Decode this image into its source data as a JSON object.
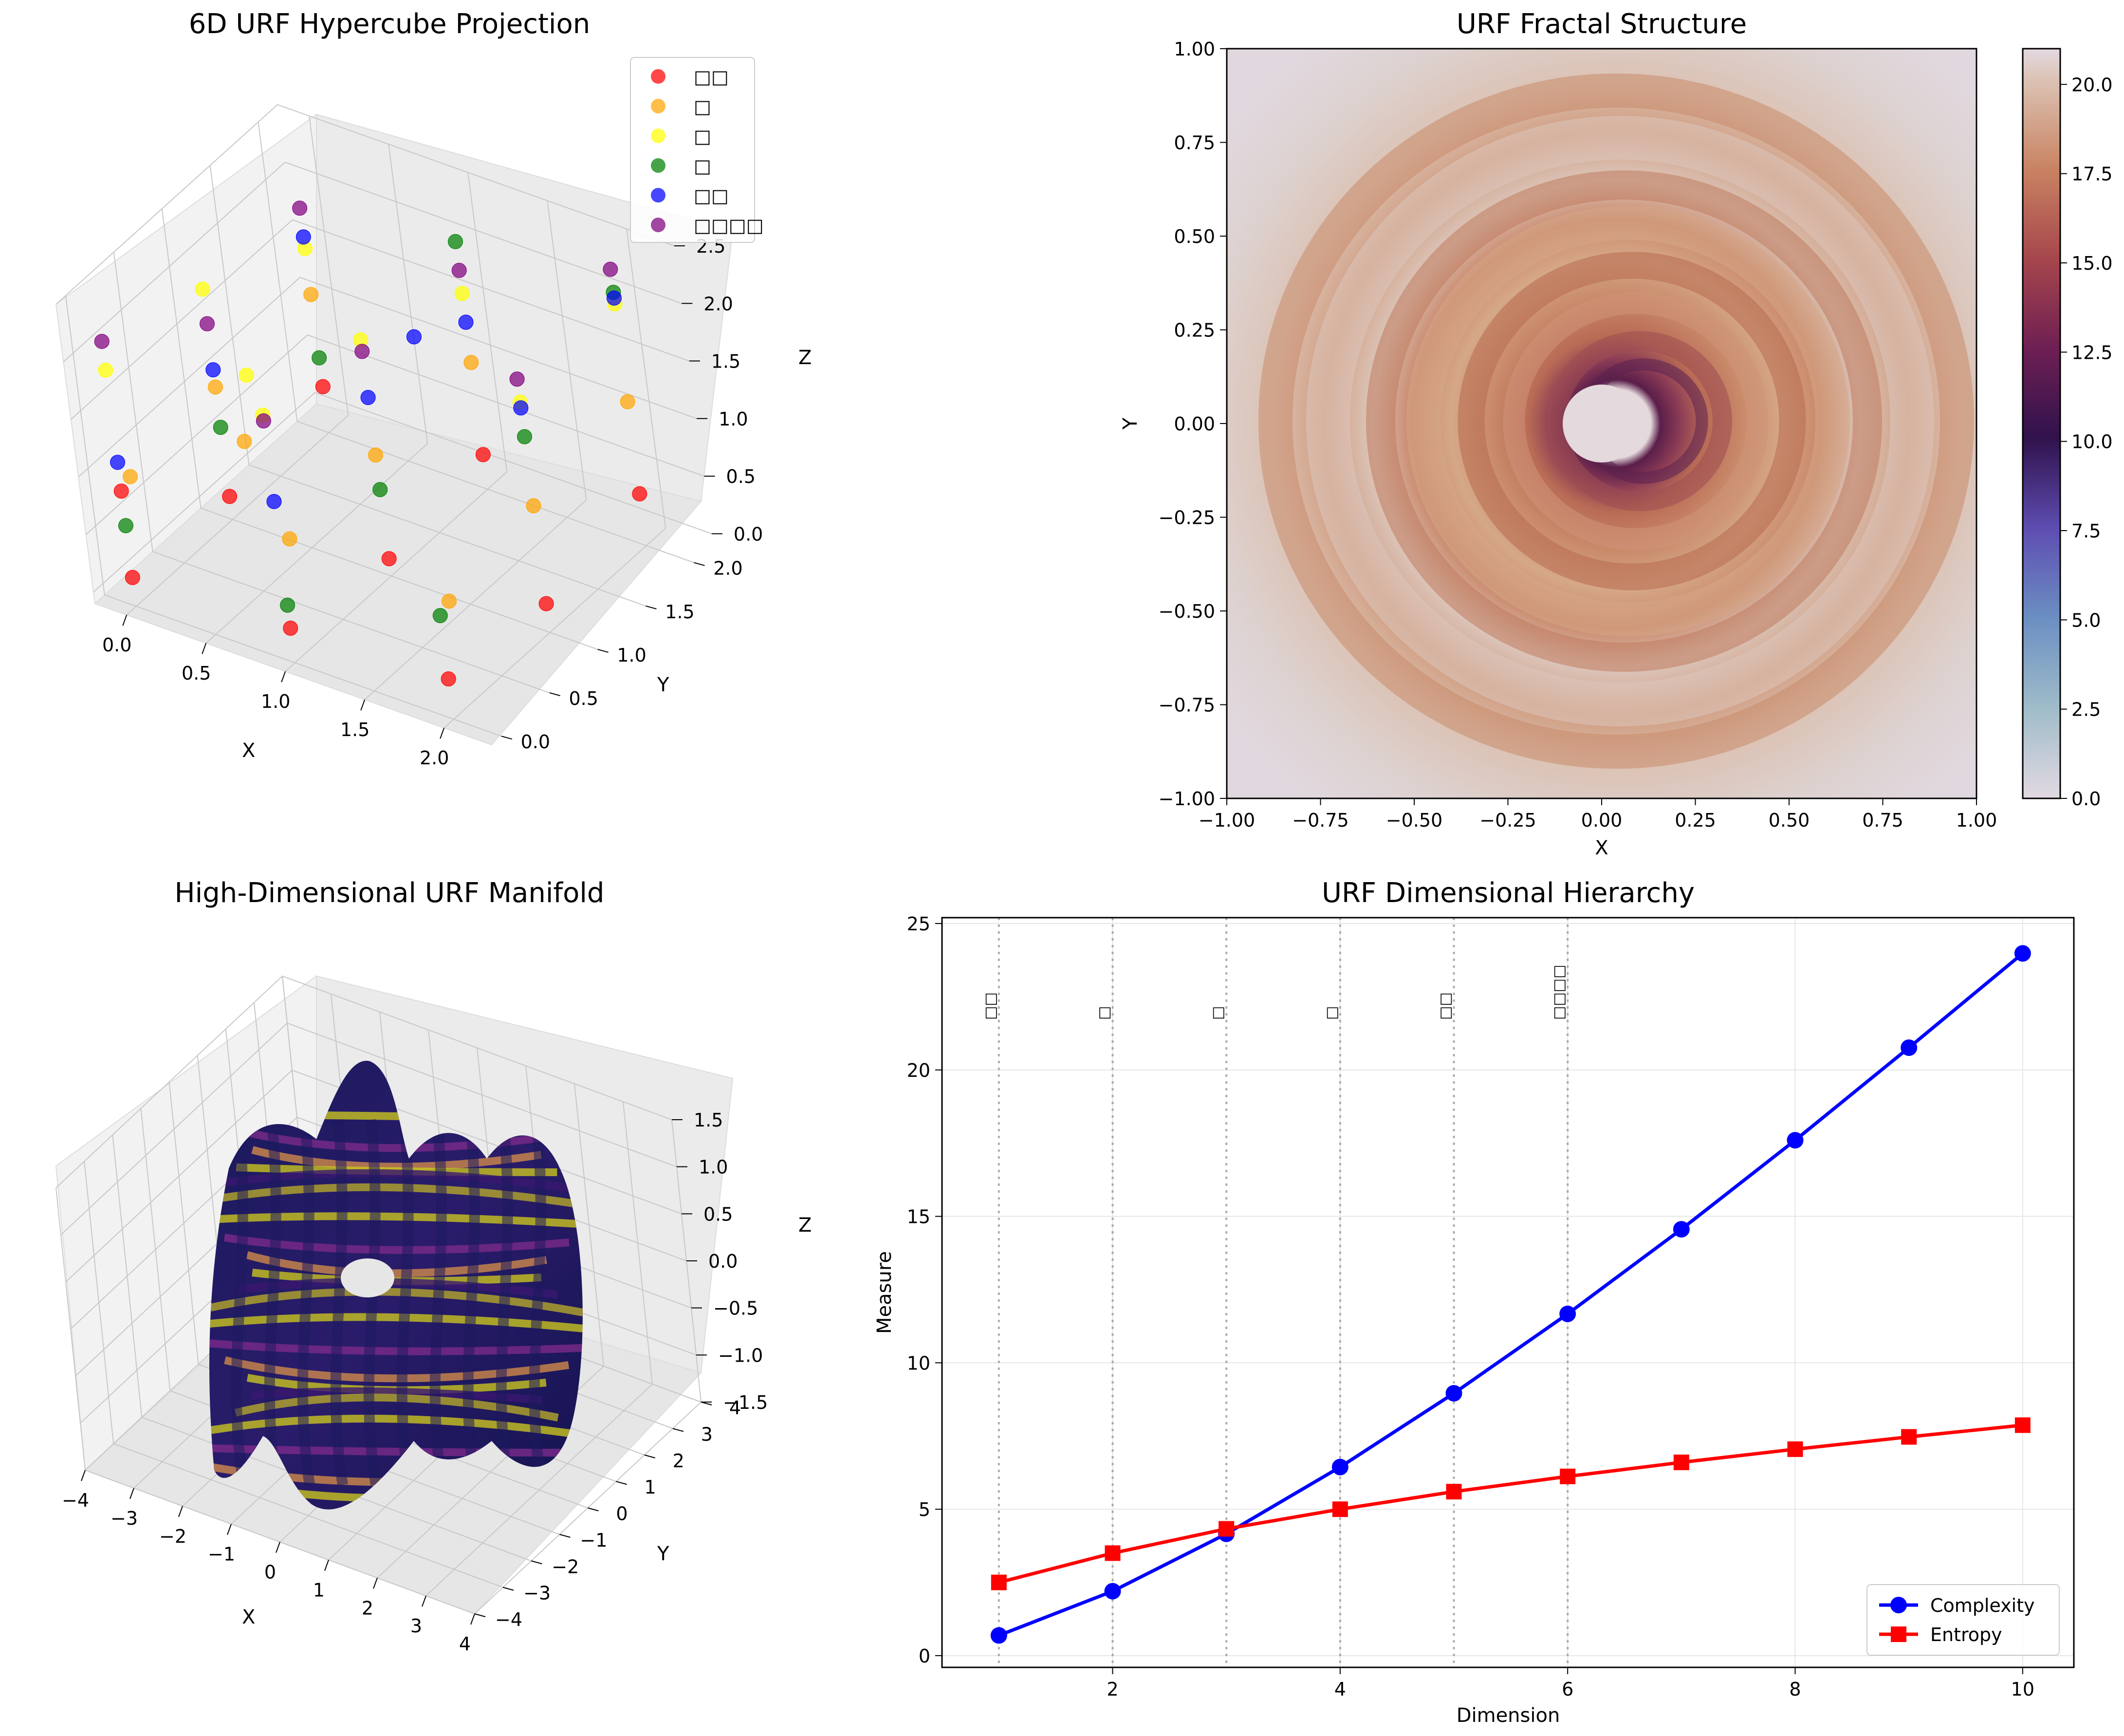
{
  "figure": {
    "panels": [
      {
        "title": "6D URF Hypercube Projection"
      },
      {
        "title": "URF Fractal Structure"
      },
      {
        "title": "High-Dimensional URF Manifold"
      },
      {
        "title": "URF Dimensional Hierarchy"
      }
    ]
  },
  "chart_data": [
    {
      "type": "scatter",
      "projection": "3d",
      "title": "6D URF Hypercube Projection",
      "xlabel": "X",
      "ylabel": "Y",
      "zlabel": "Z",
      "xticks": [
        "0.0",
        "0.5",
        "1.0",
        "1.5",
        "2.0"
      ],
      "yticks": [
        "0.0",
        "0.5",
        "1.0",
        "1.5",
        "2.0"
      ],
      "zticks": [
        "0.0",
        "0.5",
        "1.0",
        "1.5",
        "2.0",
        "2.5"
      ],
      "xlim": [
        -0.2,
        2.3
      ],
      "ylim": [
        -0.1,
        2.2
      ],
      "zlim": [
        -0.1,
        2.5
      ],
      "legend": {
        "placement": "upper-right"
      },
      "series": [
        {
          "name": "□□",
          "color": "#ff0000",
          "points": [
            [
              0,
              0,
              0.15
            ],
            [
              0,
              1,
              0.1
            ],
            [
              1,
              0,
              0.2
            ],
            [
              1,
              1,
              0.05
            ],
            [
              2,
              0,
              0.25
            ],
            [
              2,
              1,
              0.15
            ],
            [
              0,
              2,
              0.3
            ],
            [
              1,
              2,
              0.2
            ],
            [
              2,
              2,
              0.35
            ],
            [
              0,
              0,
              0.9
            ]
          ]
        },
        {
          "name": "□",
          "color": "#ffa500",
          "points": [
            [
              0,
              0.1,
              0.95
            ],
            [
              1,
              0.1,
              0.9
            ],
            [
              2,
              0.1,
              0.85
            ],
            [
              0,
              1,
              1.05
            ],
            [
              1,
              1,
              0.95
            ],
            [
              2,
              1,
              1.0
            ],
            [
              0,
              2,
              1.1
            ],
            [
              1,
              2,
              1.0
            ],
            [
              2,
              2,
              1.15
            ],
            [
              0.5,
              0.5,
              1.2
            ]
          ]
        },
        {
          "name": "□",
          "color": "#ffff00",
          "points": [
            [
              0,
              0,
              1.95
            ],
            [
              0,
              1,
              1.9
            ],
            [
              1,
              0,
              2.05
            ],
            [
              1,
              1,
              1.95
            ],
            [
              2,
              1,
              1.9
            ],
            [
              0,
              2,
              1.5
            ],
            [
              1,
              2,
              1.6
            ],
            [
              2,
              2,
              2.0
            ],
            [
              0.5,
              0.6,
              1.7
            ]
          ]
        },
        {
          "name": "□",
          "color": "#008000",
          "points": [
            [
              0,
              0,
              0.6
            ],
            [
              1,
              0,
              0.4
            ],
            [
              2,
              0,
              0.8
            ],
            [
              0,
              1,
              0.7
            ],
            [
              1,
              1,
              0.65
            ],
            [
              2,
              1,
              1.6
            ],
            [
              1,
              2,
              2.05
            ],
            [
              2,
              2,
              2.1
            ],
            [
              0,
              2,
              0.55
            ]
          ]
        },
        {
          "name": "□□",
          "color": "#0000ff",
          "points": [
            [
              0,
              0,
              1.15
            ],
            [
              0,
              1,
              1.2
            ],
            [
              1,
              0,
              1.3
            ],
            [
              1,
              1,
              1.45
            ],
            [
              1,
              2,
              1.35
            ],
            [
              2,
              1,
              1.85
            ],
            [
              2,
              2,
              2.05
            ],
            [
              0,
              2,
              1.6
            ],
            [
              1,
              1.5,
              1.6
            ]
          ]
        },
        {
          "name": "□□□□",
          "color": "#800080",
          "points": [
            [
              0,
              0,
              2.2
            ],
            [
              0,
              1,
              1.6
            ],
            [
              1,
              0,
              2.0
            ],
            [
              1,
              1,
              1.85
            ],
            [
              1,
              2,
              1.8
            ],
            [
              2,
              1,
              2.1
            ],
            [
              2,
              2,
              2.3
            ],
            [
              0,
              2,
              1.85
            ]
          ]
        }
      ]
    },
    {
      "type": "heatmap",
      "title": "URF Fractal Structure",
      "xlabel": "X",
      "ylabel": "Y",
      "xlim": [
        -1.0,
        1.0
      ],
      "ylim": [
        -1.0,
        1.0
      ],
      "xticks": [
        "−1.00",
        "−0.75",
        "−0.50",
        "−0.25",
        "0.00",
        "0.25",
        "0.50",
        "0.75",
        "1.00"
      ],
      "yticks": [
        "−1.00",
        "−0.75",
        "−0.50",
        "−0.25",
        "0.00",
        "0.25",
        "0.50",
        "0.75",
        "1.00"
      ],
      "colorbar": {
        "range": [
          0,
          21
        ],
        "ticks": [
          "0.0",
          "2.5",
          "5.0",
          "7.5",
          "10.0",
          "12.5",
          "15.0",
          "17.5",
          "20.0"
        ],
        "colormap": "twilight"
      },
      "description": "iteration-count fractal, spiral rings around a hollow center"
    },
    {
      "type": "surface",
      "projection": "3d",
      "title": "High-Dimensional URF Manifold",
      "xlabel": "X",
      "ylabel": "Y",
      "zlabel": "Z",
      "xticks": [
        "−4",
        "−3",
        "−2",
        "−1",
        "0",
        "1",
        "2",
        "3",
        "4"
      ],
      "yticks": [
        "−4",
        "−3",
        "−2",
        "−1",
        "0",
        "1",
        "2",
        "3",
        "4"
      ],
      "zticks": [
        "−1.5",
        "−1.0",
        "−0.5",
        "0.0",
        "0.5",
        "1.0",
        "1.5"
      ],
      "xlim": [
        -4,
        4
      ],
      "ylim": [
        -4,
        4
      ],
      "zlim": [
        -1.5,
        1.5
      ],
      "colormap": "plasma-banded"
    },
    {
      "type": "line",
      "title": "URF Dimensional Hierarchy",
      "xlabel": "Dimension",
      "ylabel": "Measure",
      "xlim": [
        0.5,
        10.45
      ],
      "ylim": [
        -0.4,
        25.2
      ],
      "xticks": [
        2,
        4,
        6,
        8,
        10
      ],
      "yticks": [
        0,
        5,
        10,
        15,
        20,
        25
      ],
      "grid": true,
      "legend": {
        "placement": "lower-right"
      },
      "x": [
        1,
        2,
        3,
        4,
        5,
        6,
        7,
        8,
        9,
        10
      ],
      "series": [
        {
          "name": "Complexity",
          "color": "#0000ff",
          "marker": "circle",
          "values": [
            0.69,
            2.2,
            4.16,
            6.44,
            8.96,
            11.67,
            14.56,
            17.6,
            20.76,
            23.98
          ]
        },
        {
          "name": "Entropy",
          "color": "#ff0000",
          "marker": "square",
          "values": [
            2.5,
            3.5,
            4.33,
            5.0,
            5.6,
            6.12,
            6.6,
            7.05,
            7.47,
            7.87
          ]
        }
      ],
      "vlines": [
        {
          "x": 1,
          "label": "□□"
        },
        {
          "x": 2,
          "label": "□"
        },
        {
          "x": 3,
          "label": "□"
        },
        {
          "x": 4,
          "label": "□"
        },
        {
          "x": 5,
          "label": "□□"
        },
        {
          "x": 6,
          "label": "□□□□"
        }
      ]
    }
  ]
}
